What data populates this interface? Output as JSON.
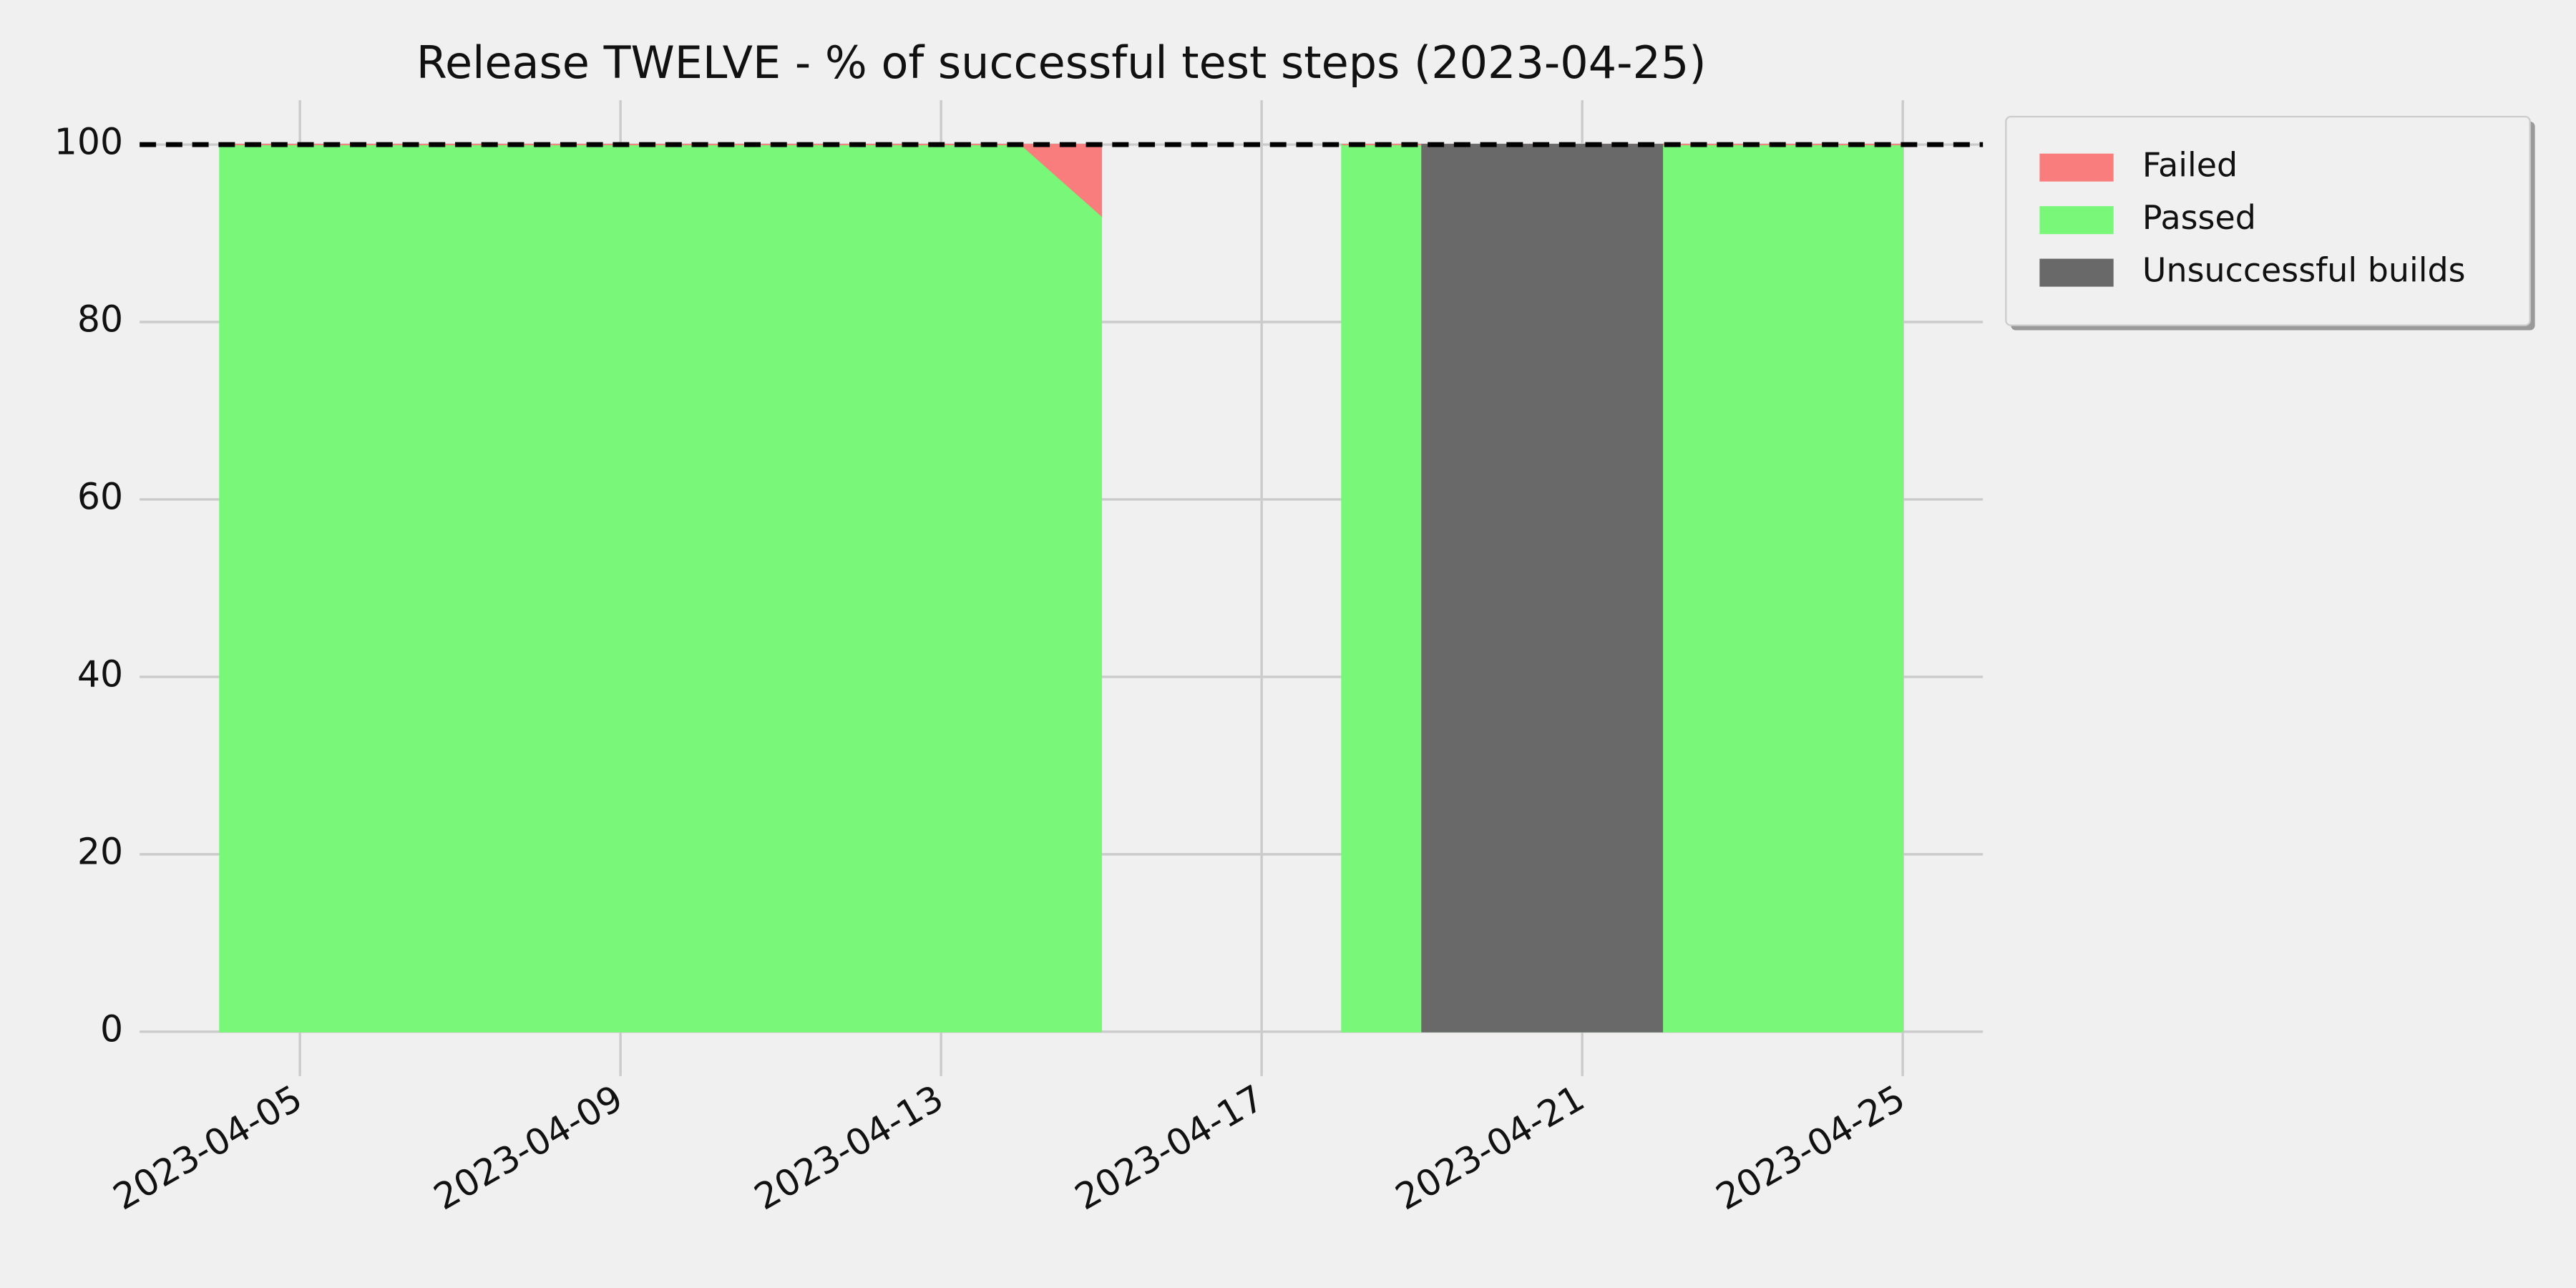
{
  "chart_data": {
    "type": "area",
    "title": "Release TWELVE - % of successful test steps (2023-04-25)",
    "x": [
      "2023-04-04",
      "2023-04-05",
      "2023-04-06",
      "2023-04-07",
      "2023-04-08",
      "2023-04-09",
      "2023-04-10",
      "2023-04-11",
      "2023-04-12",
      "2023-04-13",
      "2023-04-14",
      "2023-04-15",
      "2023-04-16",
      "2023-04-17",
      "2023-04-18",
      "2023-04-19",
      "2023-04-20",
      "2023-04-21",
      "2023-04-22",
      "2023-04-23",
      "2023-04-24",
      "2023-04-25"
    ],
    "series": [
      {
        "name": "Failed",
        "color": "#fa7d7d",
        "stack": "tests",
        "values": [
          0,
          0,
          0,
          0,
          0,
          0,
          0,
          0,
          0,
          0,
          0,
          8,
          null,
          null,
          0,
          0,
          0,
          0,
          0,
          0,
          0,
          0
        ]
      },
      {
        "name": "Passed",
        "color": "#78f778",
        "stack": "tests",
        "values": [
          100,
          100,
          100,
          100,
          100,
          100,
          100,
          100,
          100,
          100,
          100,
          92,
          null,
          null,
          100,
          100,
          100,
          100,
          100,
          100,
          100,
          100
        ]
      },
      {
        "name": "Unsuccessful builds",
        "color": "#696969",
        "values": [
          null,
          null,
          null,
          null,
          null,
          null,
          null,
          null,
          null,
          null,
          null,
          null,
          null,
          null,
          null,
          100,
          100,
          100,
          100,
          null,
          null,
          null
        ]
      }
    ],
    "xlim": [
      "2023-04-03",
      "2023-04-26"
    ],
    "xticks": [
      "2023-04-05",
      "2023-04-09",
      "2023-04-13",
      "2023-04-17",
      "2023-04-21",
      "2023-04-25"
    ],
    "ylim": [
      -5,
      105
    ],
    "yticks": [
      0,
      20,
      40,
      60,
      80,
      100
    ],
    "reference_line": 100,
    "grid": true,
    "legend": "outside-upper-right"
  }
}
